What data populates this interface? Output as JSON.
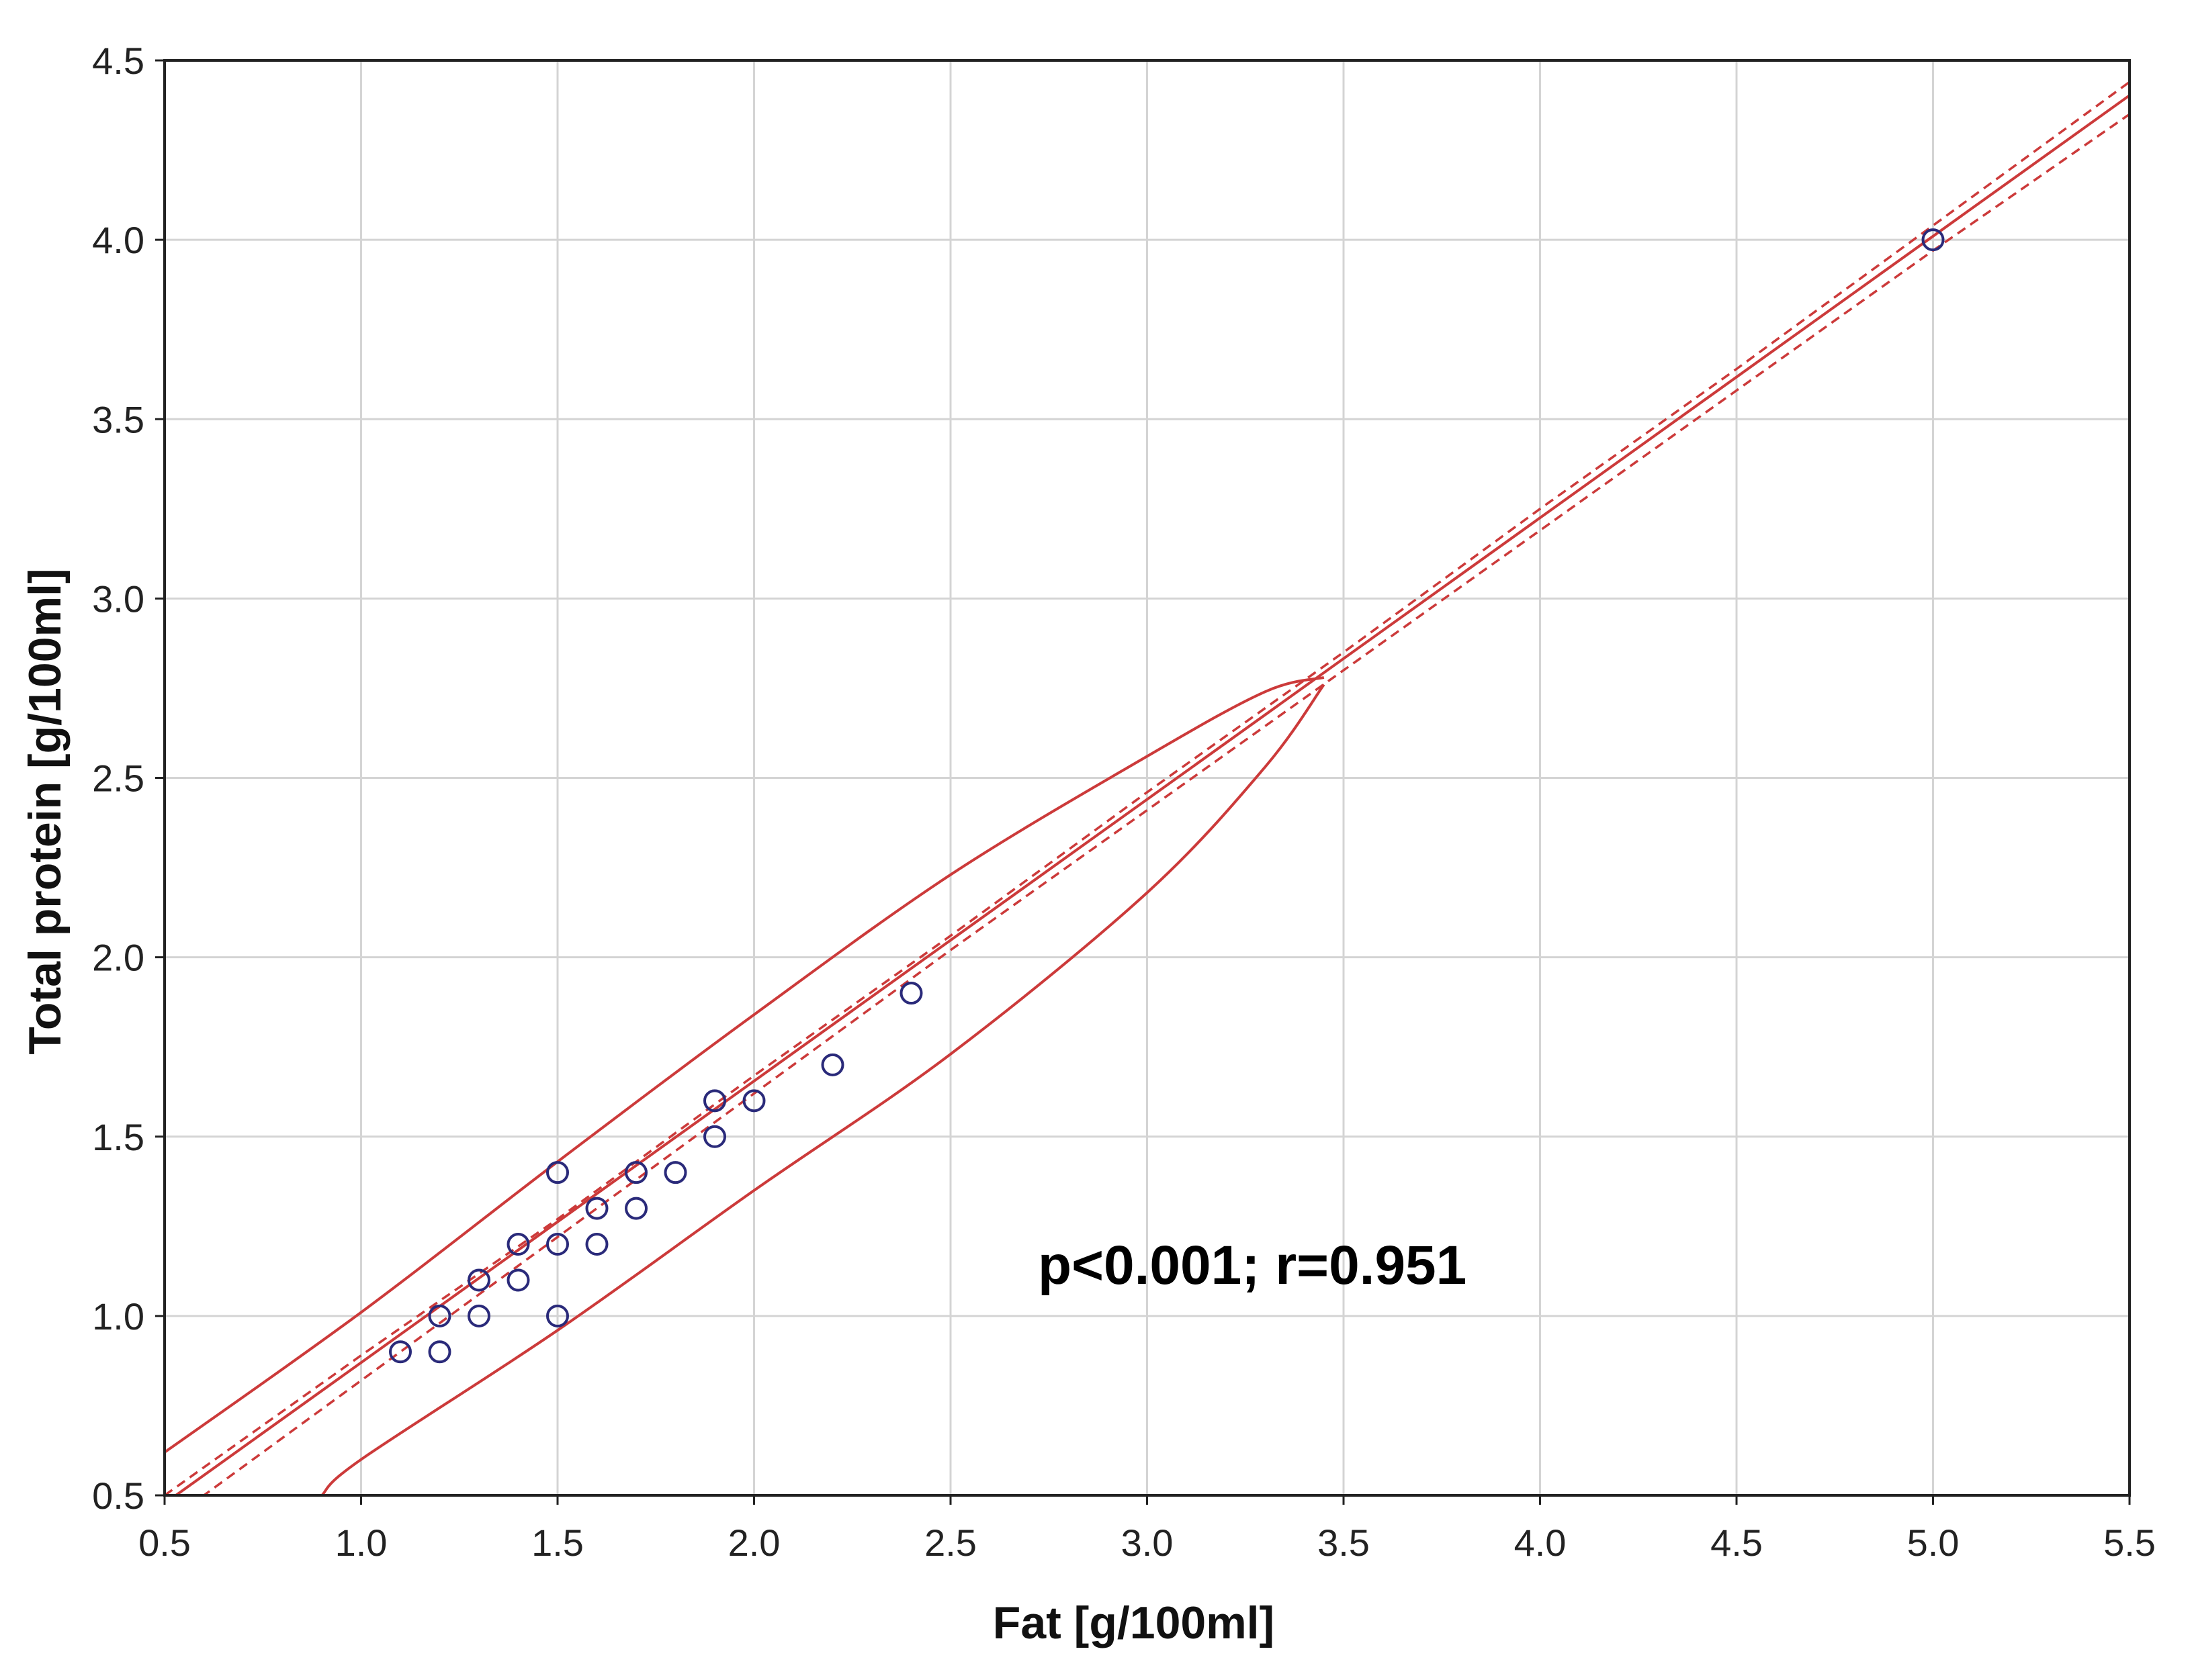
{
  "chart_data": {
    "type": "scatter",
    "xlabel": "Fat [g/100ml]",
    "ylabel": "Total protein [g/100ml]",
    "xlim": [
      0.5,
      5.5
    ],
    "ylim": [
      0.5,
      4.5
    ],
    "x_ticks": [
      "0.5",
      "1.0",
      "1.5",
      "2.0",
      "2.5",
      "3.0",
      "3.5",
      "4.0",
      "4.5",
      "5.0",
      "5.5"
    ],
    "y_ticks": [
      "0.5",
      "1.0",
      "1.5",
      "2.0",
      "2.5",
      "3.0",
      "3.5",
      "4.0",
      "4.5"
    ],
    "grid": true,
    "annotation": "p<0.001; r=0.951",
    "points": [
      {
        "x": 1.1,
        "y": 0.9
      },
      {
        "x": 1.2,
        "y": 1.0
      },
      {
        "x": 1.2,
        "y": 0.9
      },
      {
        "x": 1.3,
        "y": 1.1
      },
      {
        "x": 1.3,
        "y": 1.0
      },
      {
        "x": 1.4,
        "y": 1.2
      },
      {
        "x": 1.4,
        "y": 1.1
      },
      {
        "x": 1.5,
        "y": 1.4
      },
      {
        "x": 1.5,
        "y": 1.2
      },
      {
        "x": 1.5,
        "y": 1.0
      },
      {
        "x": 1.6,
        "y": 1.3
      },
      {
        "x": 1.6,
        "y": 1.2
      },
      {
        "x": 1.7,
        "y": 1.4
      },
      {
        "x": 1.7,
        "y": 1.3
      },
      {
        "x": 1.8,
        "y": 1.4
      },
      {
        "x": 1.9,
        "y": 1.6
      },
      {
        "x": 1.9,
        "y": 1.5
      },
      {
        "x": 2.0,
        "y": 1.6
      },
      {
        "x": 2.2,
        "y": 1.7
      },
      {
        "x": 2.4,
        "y": 1.9
      },
      {
        "x": 5.0,
        "y": 4.0
      }
    ],
    "regression": {
      "intercept": 0.085,
      "slope": 0.785
    },
    "confidence_band": [
      {
        "x": 0.5,
        "upper": 0.5,
        "lower": 0.42
      },
      {
        "x": 1.0,
        "upper": 0.89,
        "lower": 0.82
      },
      {
        "x": 1.5,
        "upper": 1.27,
        "lower": 1.22
      },
      {
        "x": 2.0,
        "upper": 1.67,
        "lower": 1.62
      },
      {
        "x": 2.5,
        "upper": 2.06,
        "lower": 2.02
      },
      {
        "x": 3.0,
        "upper": 2.46,
        "lower": 2.41
      },
      {
        "x": 3.5,
        "upper": 2.85,
        "lower": 2.8
      },
      {
        "x": 4.0,
        "upper": 3.25,
        "lower": 3.19
      },
      {
        "x": 4.5,
        "upper": 3.64,
        "lower": 3.58
      },
      {
        "x": 5.0,
        "upper": 4.04,
        "lower": 3.97
      },
      {
        "x": 5.5,
        "upper": 4.44,
        "lower": 4.35
      }
    ],
    "prediction_band": [
      {
        "x": 0.5,
        "upper": 0.62
      },
      {
        "x": 1.0,
        "upper": 1.01,
        "lower": 0.6
      },
      {
        "x": 1.5,
        "upper": 1.43,
        "lower": 0.96
      },
      {
        "x": 2.0,
        "upper": 1.84,
        "lower": 1.35
      },
      {
        "x": 2.5,
        "upper": 2.23,
        "lower": 1.73
      },
      {
        "x": 3.0,
        "upper": 2.56,
        "lower": 2.18
      },
      {
        "x": 3.3,
        "upper": 2.74,
        "lower": 2.53
      },
      {
        "x": 3.45,
        "upper": 2.78,
        "lower": 2.76
      }
    ],
    "colors": {
      "line": "#cc3a3a",
      "marker": "#2a2a7a",
      "grid": "#d4d4d4",
      "frame": "#222222"
    }
  }
}
